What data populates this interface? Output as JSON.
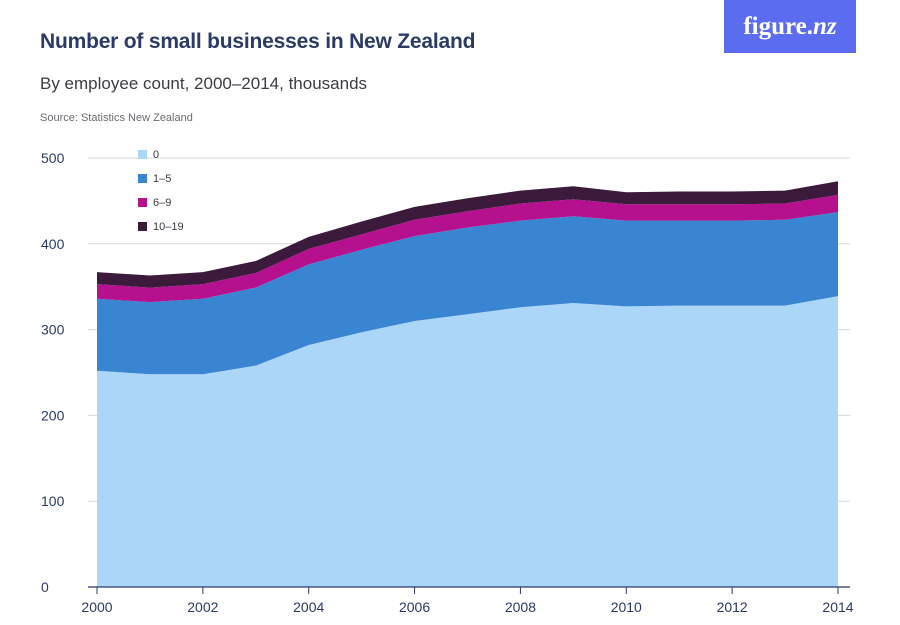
{
  "brand": {
    "logo_main": "figure",
    "logo_dot": ".",
    "logo_suffix": "nz"
  },
  "header": {
    "title": "Number of small businesses in New Zealand",
    "subtitle": "By employee count, 2000–2014, thousands",
    "source": "Source: Statistics New Zealand"
  },
  "colors": {
    "series_0": "#acd6f8",
    "series_1_5": "#3985d1",
    "series_6_9": "#b5108e",
    "series_10_19": "#3b1a3c",
    "grid": "#d5d5d5",
    "axis": "#2b3a67"
  },
  "chart_data": {
    "type": "area",
    "stacked": true,
    "title": "Number of small businesses in New Zealand",
    "subtitle": "By employee count, 2000–2014, thousands",
    "xlabel": "",
    "ylabel": "",
    "ylim": [
      0,
      500
    ],
    "yticks": [
      0,
      100,
      200,
      300,
      400,
      500
    ],
    "xticks": [
      2000,
      2002,
      2004,
      2006,
      2008,
      2010,
      2012,
      2014
    ],
    "grid": true,
    "legend_position": "top-left",
    "x": [
      2000,
      2001,
      2002,
      2003,
      2004,
      2005,
      2006,
      2007,
      2008,
      2009,
      2010,
      2011,
      2012,
      2013,
      2014
    ],
    "series": [
      {
        "name": "0",
        "values": [
          252,
          248,
          248,
          258,
          282,
          297,
          310,
          318,
          326,
          331,
          327,
          328,
          328,
          328,
          339
        ]
      },
      {
        "name": "1–5",
        "values": [
          84,
          84,
          88,
          91,
          94,
          96,
          99,
          101,
          101,
          101,
          100,
          99,
          99,
          100,
          98
        ]
      },
      {
        "name": "6–9",
        "values": [
          17,
          17,
          17,
          17,
          18,
          18,
          19,
          19,
          20,
          20,
          19,
          19,
          19,
          19,
          20
        ]
      },
      {
        "name": "10–19",
        "values": [
          14,
          14,
          14,
          14,
          14,
          15,
          15,
          15,
          15,
          15,
          14,
          15,
          15,
          15,
          16
        ]
      }
    ]
  }
}
